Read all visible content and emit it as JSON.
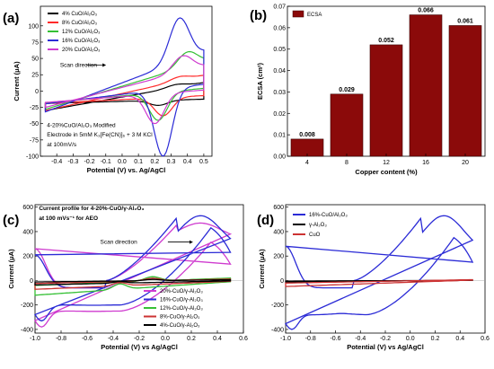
{
  "chart_data": [
    {
      "id": "a",
      "panel_label": "(a)",
      "type": "line",
      "xlabel": "Potential (V) vs. Ag/AgCl",
      "ylabel": "Current (μA)",
      "xlim": [
        -0.5,
        0.55
      ],
      "ylim": [
        -100,
        130
      ],
      "xticks": [
        -0.4,
        -0.3,
        -0.2,
        -0.1,
        0.0,
        0.1,
        0.2,
        0.3,
        0.4,
        0.5
      ],
      "yticks": [
        -100,
        -75,
        -50,
        -25,
        0,
        25,
        50,
        75,
        100
      ],
      "legend_position": "top-left",
      "annotations": [
        {
          "text": "Scan direction",
          "x": -0.38,
          "y": 37
        },
        {
          "text": "4-20%CuO/Al₂O₃ Modified",
          "x": -0.46,
          "y": -55
        },
        {
          "text": "Electrode in 5mM K₃[Fe(CN)]₆ + 3 M KCl",
          "x": -0.46,
          "y": -70
        },
        {
          "text": "at 100mV/s",
          "x": -0.46,
          "y": -85
        }
      ],
      "series": [
        {
          "name": "4% CuO/Al₂O₃",
          "color": "#000000",
          "epa": 0.33,
          "ipa": 10,
          "epc": 0.22,
          "ipc": -22,
          "base": -30,
          "end": 13
        },
        {
          "name": "8% CuO/Al₂O₃",
          "color": "#ff2a2a",
          "epa": 0.35,
          "ipa": 22,
          "epc": 0.25,
          "ipc": -38,
          "base": -30,
          "end": 24
        },
        {
          "name": "12% CuO/Al₂O₃",
          "color": "#35c035",
          "epa": 0.4,
          "ipa": 60,
          "epc": 0.22,
          "ipc": -45,
          "base": -28,
          "end": 45
        },
        {
          "name": "16% CuO/Al₂O₃",
          "color": "#2b2bd6",
          "epa": 0.35,
          "ipa": 112,
          "epc": 0.25,
          "ipc": -100,
          "base": -32,
          "end": 60
        },
        {
          "name": "20% CuO/Al₂O₃",
          "color": "#cf3bcf",
          "epa": 0.37,
          "ipa": 54,
          "epc": 0.2,
          "ipc": -50,
          "base": -25,
          "end": 38
        }
      ]
    },
    {
      "id": "b",
      "panel_label": "(b)",
      "type": "bar",
      "legend": "ECSA",
      "legend_position": "top-left",
      "xlabel": "Copper content (%)",
      "ylabel": "ECSA (cm²)",
      "categories": [
        "4",
        "8",
        "12",
        "16",
        "20"
      ],
      "values": [
        0.008,
        0.029,
        0.052,
        0.066,
        0.061
      ],
      "data_labels": [
        "0.008",
        "0.029",
        "0.052",
        "0.066",
        "0.061"
      ],
      "ylim": [
        0,
        0.07
      ],
      "yticks": [
        0.0,
        0.01,
        0.02,
        0.03,
        0.04,
        0.05,
        0.06,
        0.07
      ],
      "color": "#8b0a0a"
    },
    {
      "id": "c",
      "panel_label": "(c)",
      "type": "line",
      "xlabel": "Potential (V) vs Ag/AgCl",
      "ylabel": "Current (μA)",
      "xlim": [
        -1.0,
        0.6
      ],
      "ylim": [
        -430,
        620
      ],
      "xticks": [
        -1.0,
        -0.8,
        -0.6,
        -0.4,
        -0.2,
        0.0,
        0.2,
        0.4,
        0.6
      ],
      "yticks": [
        -400,
        -200,
        0,
        200,
        400,
        600
      ],
      "legend_position": "bottom-right",
      "annotations": [
        {
          "text": "Current profile for 4-20%-CuO/γ-Al₂O₃",
          "x": -0.97,
          "y": 575
        },
        {
          "text": "at 100 mVs⁻¹ for AEO",
          "x": -0.97,
          "y": 495
        },
        {
          "text": "Scan direction",
          "x": -0.5,
          "y": 300
        }
      ],
      "series": [
        {
          "name": "20%-CuO/γ-Al₂O₃",
          "color": "#cf3bcf",
          "kind": "big",
          "peak": 470,
          "end": 330,
          "cath": -380,
          "low": -250,
          "ret": -255
        },
        {
          "name": "16%-CuO/γ-Al₂O₃",
          "color": "#2b2bd6",
          "kind": "big",
          "peak": 530,
          "end": 240,
          "cath": -330,
          "low": -200,
          "ret": -205
        },
        {
          "name": "12%-CuO/γ-Al₂O₃",
          "color": "#35c035",
          "kind": "small",
          "scale": 1.0
        },
        {
          "name": "8%-CuO/γ-Al₂O₃",
          "color": "#cc3333",
          "kind": "small",
          "scale": 0.6
        },
        {
          "name": "4%-CuO/γ-Al₂O₃",
          "color": "#000000",
          "kind": "small",
          "scale": 0.3
        }
      ]
    },
    {
      "id": "d",
      "panel_label": "(d)",
      "type": "line",
      "xlabel": "Potential (V) vs Ag/AgCl",
      "ylabel": "Current (μA)",
      "xlim": [
        -1.0,
        0.6
      ],
      "ylim": [
        -430,
        620
      ],
      "xticks": [
        -1.0,
        -0.8,
        -0.6,
        -0.4,
        -0.2,
        0.0,
        0.2,
        0.4,
        0.6
      ],
      "yticks": [
        -400,
        -200,
        0,
        200,
        400,
        600
      ],
      "legend_position": "top-left",
      "series": [
        {
          "name": "16%-CuO/Al₂O₃",
          "color": "#2b2bd6",
          "kind": "big",
          "peak": 530,
          "end": 220,
          "cath": -400,
          "low": -280,
          "ret": -260
        },
        {
          "name": "γ-Al₂O₃",
          "color": "#000000",
          "kind": "flat",
          "scale": 0.08
        },
        {
          "name": "CuO",
          "color": "#cc3333",
          "kind": "flat",
          "scale": 0.35
        }
      ]
    }
  ]
}
